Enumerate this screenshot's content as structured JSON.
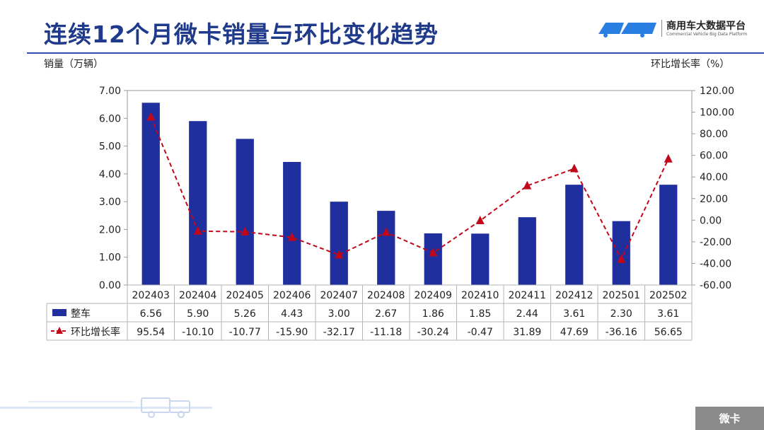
{
  "page": {
    "title": "连续12个月微卡销量与环比变化趋势",
    "brand_name": "商用车大数据平台",
    "brand_sub": "Commercial Vehicle Big Data Platform",
    "footer_tag": "微卡"
  },
  "colors": {
    "bar": "#1f2f9e",
    "line": "#c0081a",
    "title": "#1f3a8a"
  },
  "chart_data": {
    "type": "bar",
    "categories": [
      "202403",
      "202404",
      "202405",
      "202406",
      "202407",
      "202408",
      "202409",
      "202410",
      "202411",
      "202412",
      "202501",
      "202502"
    ],
    "series": [
      {
        "name": "整车",
        "type": "bar",
        "axis": "left",
        "values": [
          6.56,
          5.9,
          5.26,
          4.43,
          3.0,
          2.67,
          1.86,
          1.85,
          2.44,
          3.61,
          2.3,
          3.61
        ]
      },
      {
        "name": "环比增长率",
        "type": "line",
        "axis": "right",
        "values": [
          95.54,
          -10.1,
          -10.77,
          -15.9,
          -32.17,
          -11.18,
          -30.24,
          -0.47,
          31.89,
          47.69,
          -36.16,
          56.65
        ]
      }
    ],
    "ylabel": "销量（万辆）",
    "ylabel_right": "环比增长率（%）",
    "ylim": [
      0,
      7
    ],
    "y_ticks": [
      "0.00",
      "1.00",
      "2.00",
      "3.00",
      "4.00",
      "5.00",
      "6.00",
      "7.00"
    ],
    "ylim_right": [
      -60,
      120
    ],
    "y_ticks_right": [
      "-60.00",
      "-40.00",
      "-20.00",
      "0.00",
      "20.00",
      "40.00",
      "60.00",
      "80.00",
      "100.00",
      "120.00"
    ],
    "bar_labels": [
      "6.56",
      "5.90",
      "5.26",
      "4.43",
      "3.00",
      "2.67",
      "1.86",
      "1.85",
      "2.44",
      "3.61",
      "2.30",
      "3.61"
    ],
    "line_labels": [
      "95.54",
      "-10.10",
      "-10.77",
      "-15.90",
      "-32.17",
      "-11.18",
      "-30.24",
      "-0.47",
      "31.89",
      "47.69",
      "-36.16",
      "56.65"
    ],
    "grid": false,
    "legend": "table-below"
  }
}
